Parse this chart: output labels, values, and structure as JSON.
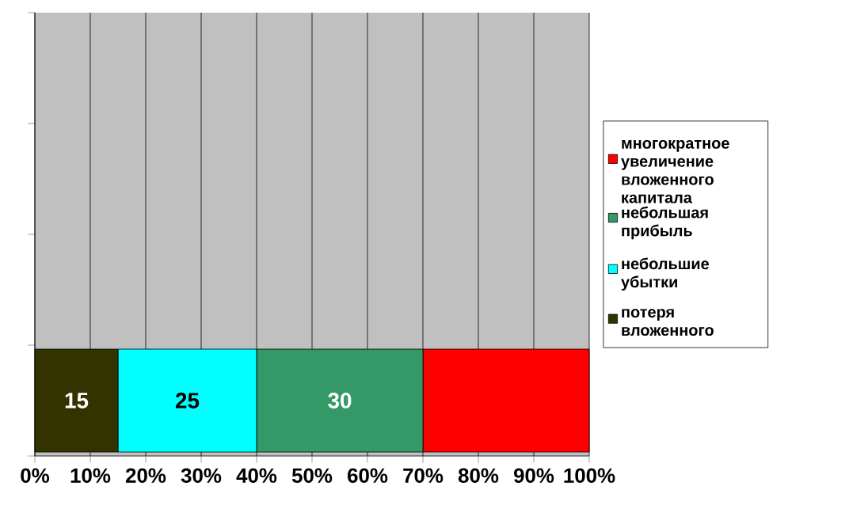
{
  "chart_data": {
    "type": "bar",
    "orientation": "horizontal",
    "stacked": true,
    "categories": [
      null,
      null,
      null,
      null
    ],
    "series": [
      {
        "name": "потеря вложенного",
        "color": "#333300",
        "values": [
          null,
          null,
          null,
          15
        ],
        "value_labels": [
          null,
          null,
          null,
          "15"
        ]
      },
      {
        "name": "небольшие убытки",
        "color": "#00ffff",
        "values": [
          null,
          null,
          null,
          25
        ],
        "value_labels": [
          null,
          null,
          null,
          "25"
        ]
      },
      {
        "name": "небольшая прибыль",
        "color": "#339966",
        "values": [
          null,
          null,
          null,
          30
        ],
        "value_labels": [
          null,
          null,
          null,
          "30"
        ]
      },
      {
        "name": "многократное увеличение вложенного капитала",
        "color": "#ff0000",
        "values": [
          null,
          null,
          null,
          30
        ],
        "value_labels": [
          null,
          null,
          null,
          null
        ]
      }
    ],
    "xlim": [
      0,
      100
    ],
    "xticks": [
      {
        "value": 0,
        "label": "0%"
      },
      {
        "value": 10,
        "label": "10%"
      },
      {
        "value": 20,
        "label": "20%"
      },
      {
        "value": 30,
        "label": "30%"
      },
      {
        "value": 40,
        "label": "40%"
      },
      {
        "value": 50,
        "label": "50%"
      },
      {
        "value": 60,
        "label": "60%"
      },
      {
        "value": 70,
        "label": "70%"
      },
      {
        "value": 80,
        "label": "80%"
      },
      {
        "value": 90,
        "label": "90%"
      },
      {
        "value": 100,
        "label": "100%"
      }
    ],
    "grid": "x",
    "legend": "right",
    "tick_labels": "x"
  }
}
